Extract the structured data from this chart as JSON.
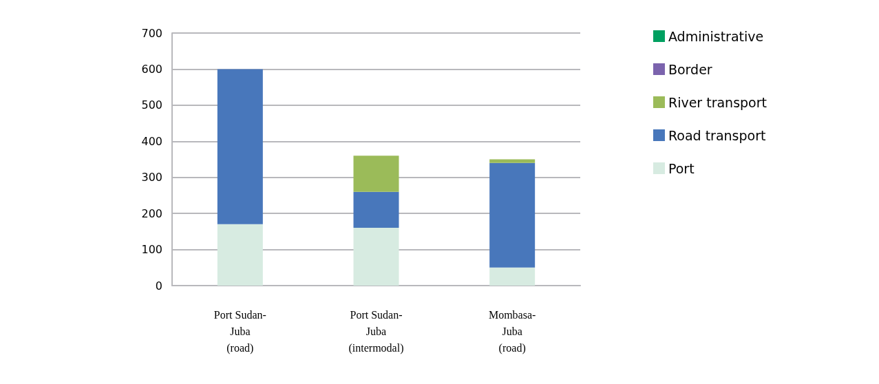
{
  "chart_data": {
    "type": "bar",
    "stacked": true,
    "categories": [
      "Port Sudan-\nJuba\n(road)",
      "Port Sudan-\nJuba\n(intermodal)",
      "Mombasa-\nJuba\n(road)"
    ],
    "series": [
      {
        "name": "Port",
        "color": "#d7ebe1",
        "values": [
          170,
          160,
          50
        ]
      },
      {
        "name": "Road transport",
        "color": "#4877bb",
        "values": [
          430,
          100,
          290
        ]
      },
      {
        "name": "River transport",
        "color": "#9bbb59",
        "values": [
          0,
          100,
          10
        ]
      },
      {
        "name": "Border",
        "color": "#7b63ad",
        "values": [
          0,
          0,
          0
        ]
      },
      {
        "name": "Administrative",
        "color": "#00a060",
        "values": [
          0,
          0,
          0
        ]
      }
    ],
    "ylim": [
      0,
      700
    ],
    "yticks": [
      0,
      100,
      200,
      300,
      400,
      500,
      600,
      700
    ],
    "grid": "y",
    "legend": "top right"
  }
}
